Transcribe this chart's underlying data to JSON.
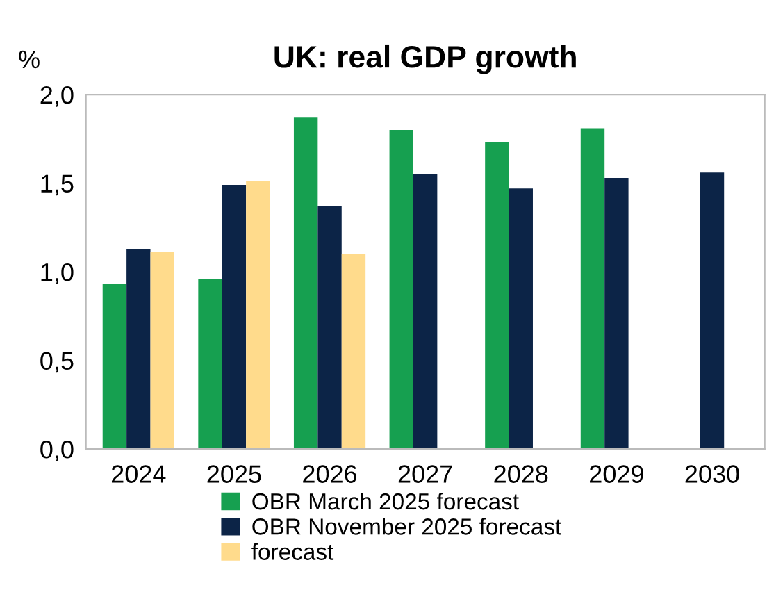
{
  "chart_data": {
    "type": "bar",
    "title": "UK: real GDP growth",
    "ylabel": "%",
    "categories": [
      "2024",
      "2025",
      "2026",
      "2027",
      "2028",
      "2029",
      "2030"
    ],
    "series": [
      {
        "name": "OBR March 2025 forecast",
        "color": "#16a050",
        "values": [
          0.93,
          0.96,
          1.87,
          1.8,
          1.73,
          1.81,
          null
        ]
      },
      {
        "name": "OBR November 2025 forecast",
        "color": "#0c2447",
        "values": [
          1.13,
          1.49,
          1.37,
          1.55,
          1.47,
          1.53,
          1.56
        ]
      },
      {
        "name": "forecast",
        "color": "#ffdb8c",
        "values": [
          1.11,
          1.51,
          1.1,
          null,
          null,
          null,
          null
        ]
      }
    ],
    "ylim": [
      0,
      2
    ],
    "yticks": [
      {
        "value": 0,
        "label": "0,0"
      },
      {
        "value": 0.5,
        "label": "0,5"
      },
      {
        "value": 1,
        "label": "1,0"
      },
      {
        "value": 1.5,
        "label": "1,5"
      },
      {
        "value": 2,
        "label": "2,0"
      }
    ],
    "grid": false,
    "legend": "bottom"
  }
}
